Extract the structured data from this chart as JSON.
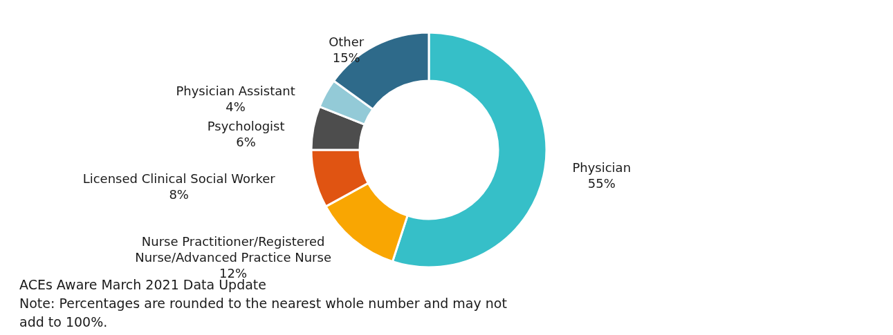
{
  "chart_data": {
    "type": "donut",
    "categories": [
      "Physician",
      "Nurse Practitioner/Registered Nurse/Advanced Practice Nurse",
      "Licensed Clinical Social Worker",
      "Psychologist",
      "Physician Assistant",
      "Other"
    ],
    "values": [
      55,
      12,
      8,
      6,
      4,
      15
    ],
    "colors": [
      "#36bfc8",
      "#f9a602",
      "#e05412",
      "#4d4d4d",
      "#93cad7",
      "#2e6a8a"
    ],
    "value_labels": [
      "55%",
      "12%",
      "8%",
      "6%",
      "4%",
      "15%"
    ],
    "annotations": [
      "ACEs Aware March 2021 Data Update",
      "Note: Percentages are rounded to the nearest whole number and may not add to 100%."
    ]
  }
}
